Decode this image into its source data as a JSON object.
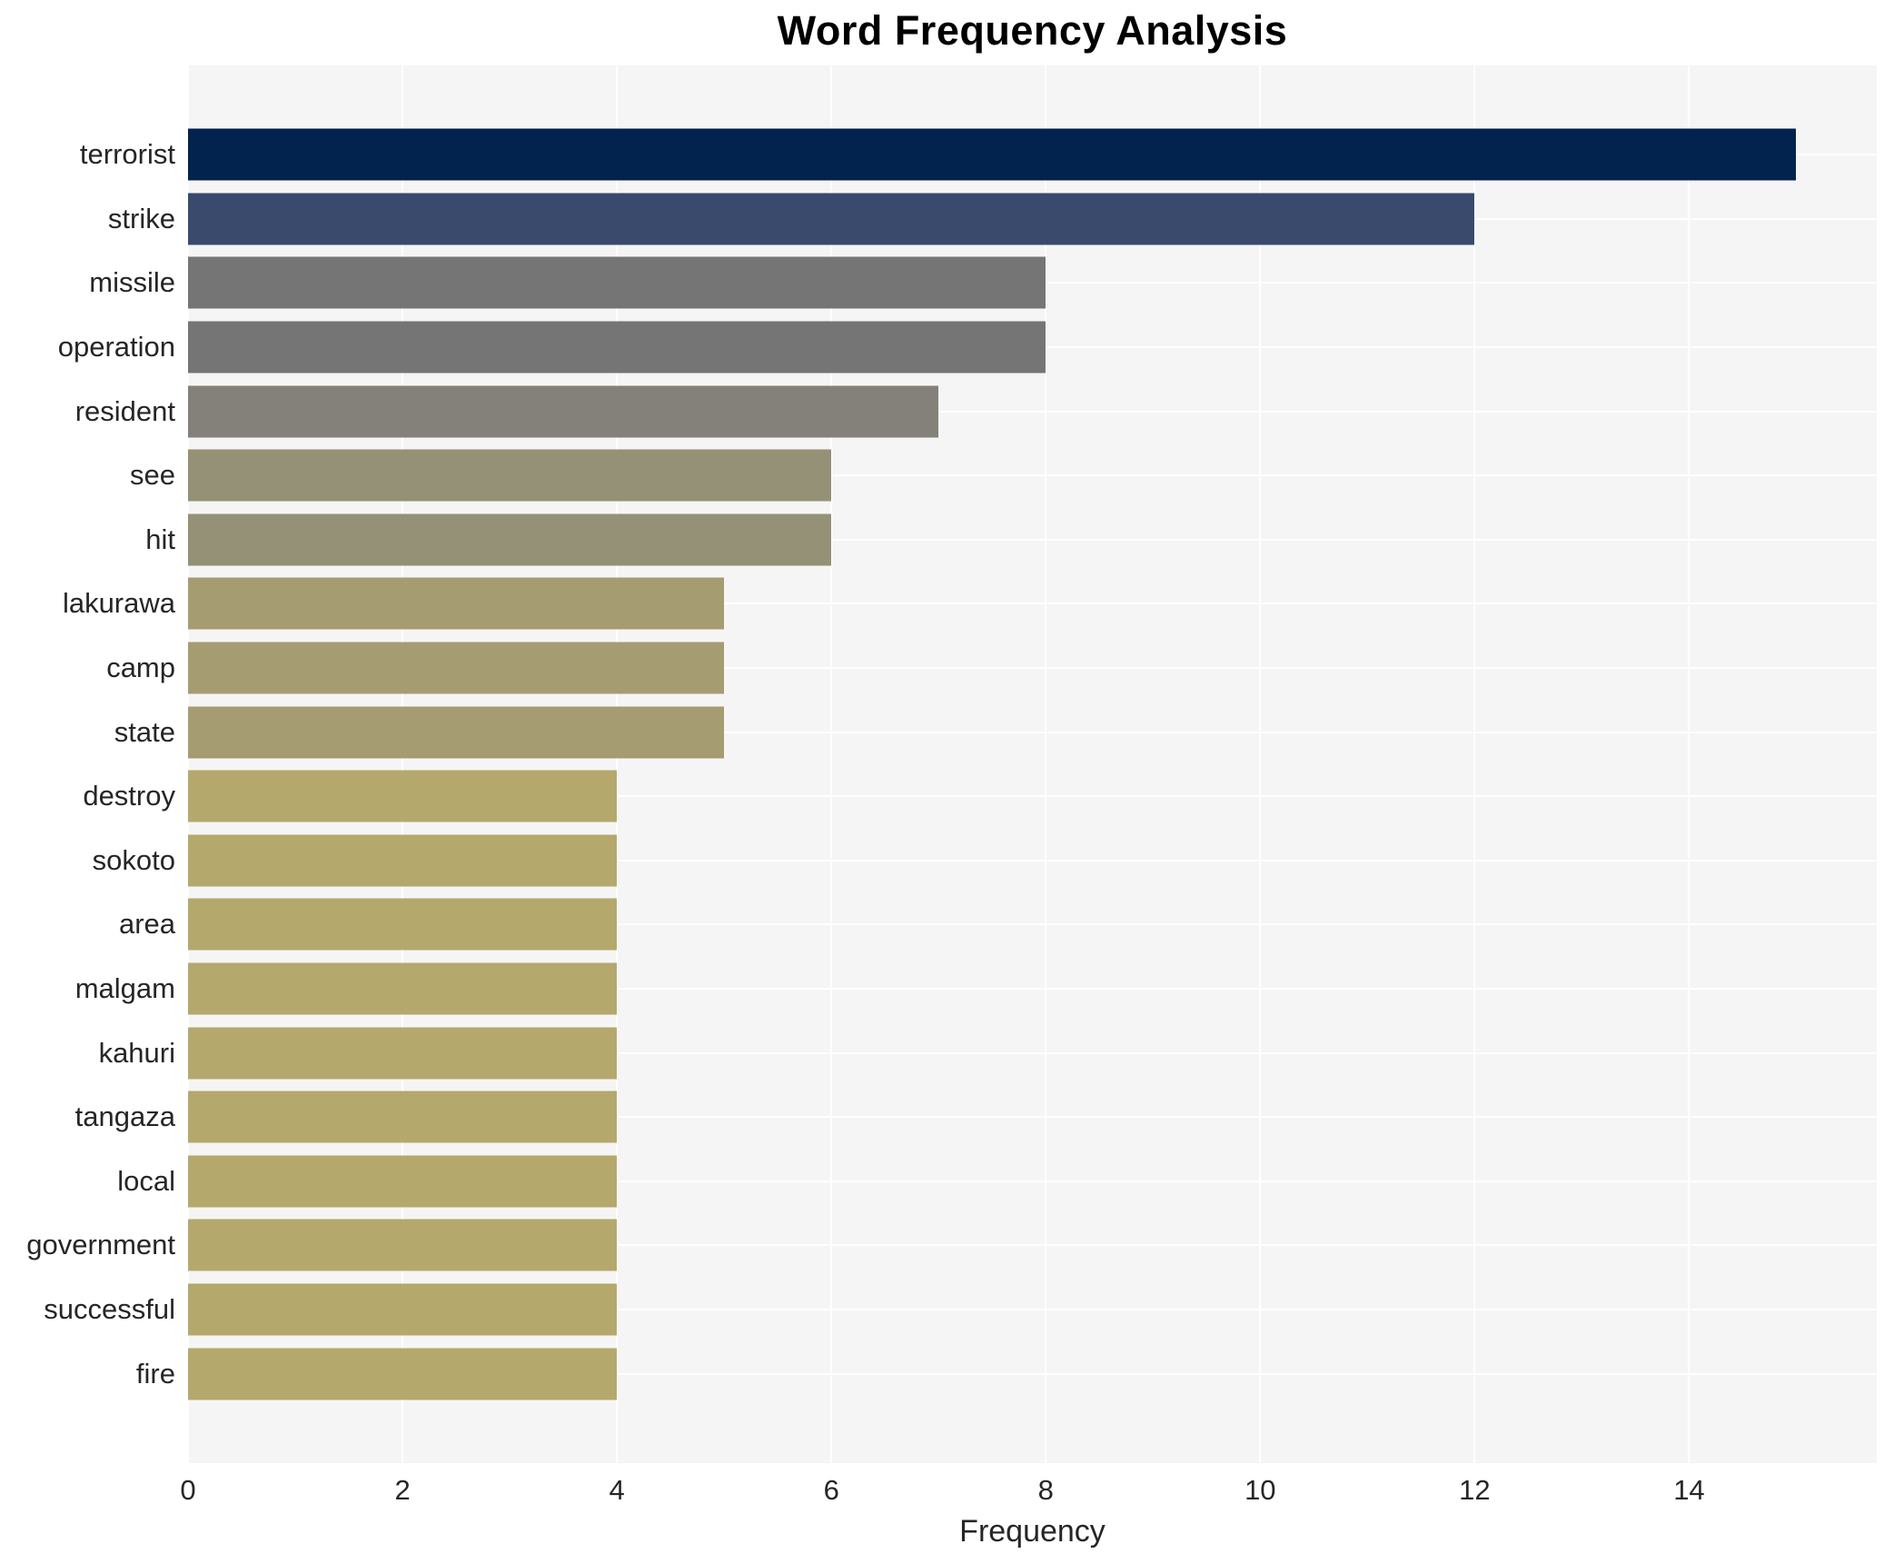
{
  "title": "Word Frequency Analysis",
  "xlabel": "Frequency",
  "colors": {
    "plot_background": "#f5f5f5",
    "gridline": "#ffffff",
    "text": "#262626",
    "title_text": "#000000"
  },
  "chart_data": {
    "type": "bar",
    "orientation": "horizontal",
    "title": "Word Frequency Analysis",
    "xlabel": "Frequency",
    "ylabel": "",
    "xlim": [
      0,
      15.75
    ],
    "x_ticks": [
      0,
      2,
      4,
      6,
      8,
      10,
      12,
      14
    ],
    "grid": true,
    "legend": false,
    "categories": [
      "terrorist",
      "strike",
      "missile",
      "operation",
      "resident",
      "see",
      "hit",
      "lakurawa",
      "camp",
      "state",
      "destroy",
      "sokoto",
      "area",
      "malgam",
      "kahuri",
      "tangaza",
      "local",
      "government",
      "successful",
      "fire"
    ],
    "values": [
      15,
      12,
      8,
      8,
      7,
      6,
      6,
      5,
      5,
      5,
      4,
      4,
      4,
      4,
      4,
      4,
      4,
      4,
      4,
      4
    ],
    "bar_colors": [
      "#02234e",
      "#394a6d",
      "#757575",
      "#757575",
      "#84817a",
      "#959176",
      "#959176",
      "#a59c71",
      "#a59c71",
      "#a59c71",
      "#b4a86d",
      "#b4a86d",
      "#b4a86d",
      "#b4a86d",
      "#b4a86d",
      "#b4a86d",
      "#b4a86d",
      "#b4a86d",
      "#b4a86d",
      "#b4a86d"
    ]
  }
}
